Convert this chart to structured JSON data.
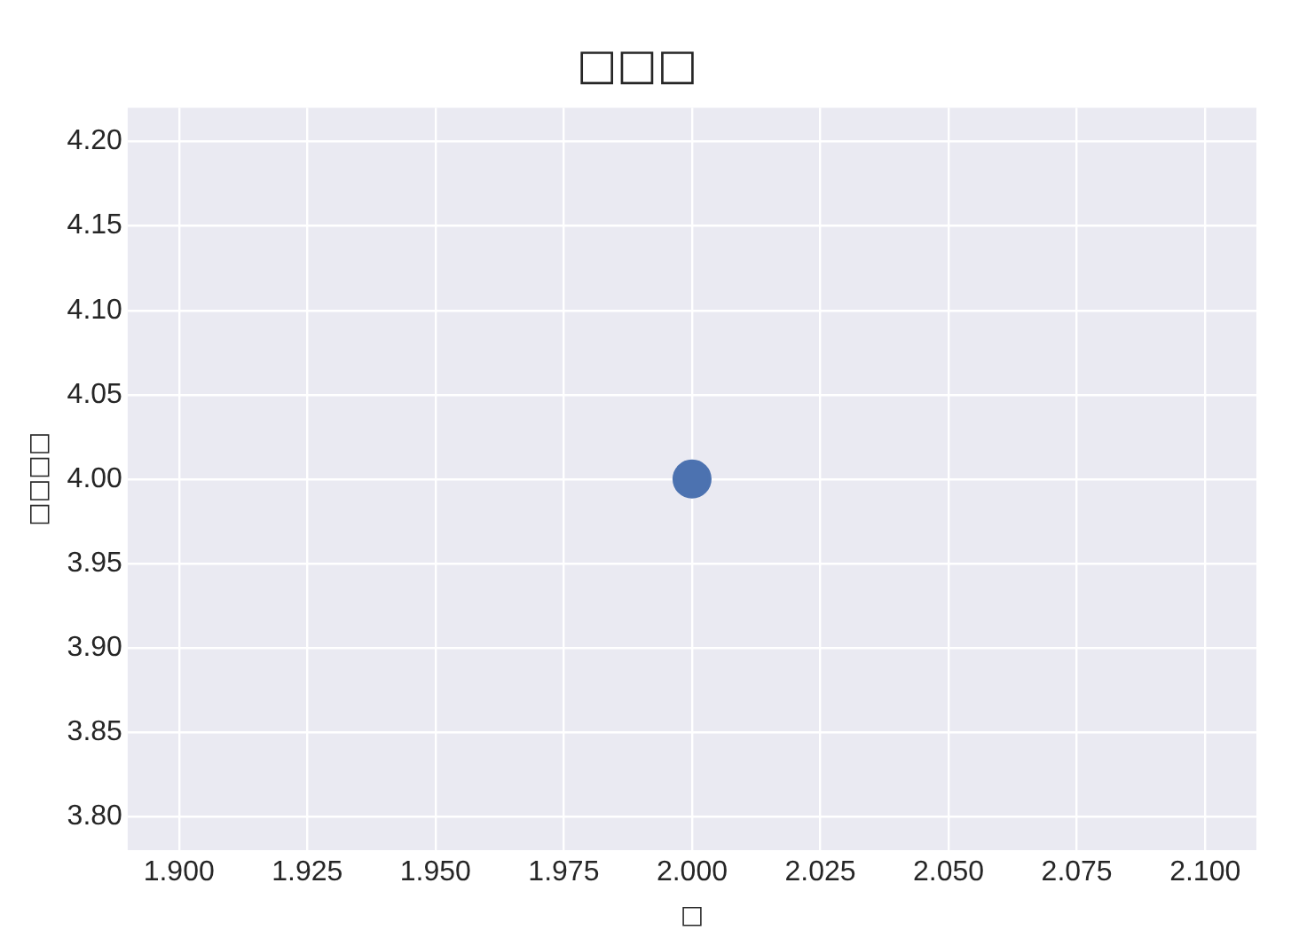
{
  "chart_data": {
    "type": "scatter",
    "title": "□□□",
    "xlabel": "□",
    "ylabel": "□□□□",
    "x": [
      2.0
    ],
    "series": [
      {
        "color": "#4c72b0",
        "values": [
          4.0
        ]
      }
    ],
    "xlim": [
      1.89,
      2.11
    ],
    "xticks": [
      {
        "value": 1.9,
        "label": "1.900"
      },
      {
        "value": 1.925,
        "label": "1.925"
      },
      {
        "value": 1.95,
        "label": "1.950"
      },
      {
        "value": 1.975,
        "label": "1.975"
      },
      {
        "value": 2.0,
        "label": "2.000"
      },
      {
        "value": 2.025,
        "label": "2.025"
      },
      {
        "value": 2.05,
        "label": "2.050"
      },
      {
        "value": 2.075,
        "label": "2.075"
      },
      {
        "value": 2.1,
        "label": "2.100"
      }
    ],
    "ylim": [
      3.78,
      4.22
    ],
    "yticks": [
      {
        "value": 3.8,
        "label": "3.80"
      },
      {
        "value": 3.85,
        "label": "3.85"
      },
      {
        "value": 3.9,
        "label": "3.90"
      },
      {
        "value": 3.95,
        "label": "3.95"
      },
      {
        "value": 4.0,
        "label": "4.00"
      },
      {
        "value": 4.05,
        "label": "4.05"
      },
      {
        "value": 4.1,
        "label": "4.10"
      },
      {
        "value": 4.15,
        "label": "4.15"
      },
      {
        "value": 4.2,
        "label": "4.20"
      }
    ],
    "grid": true,
    "legend": false,
    "marker": "circle"
  }
}
